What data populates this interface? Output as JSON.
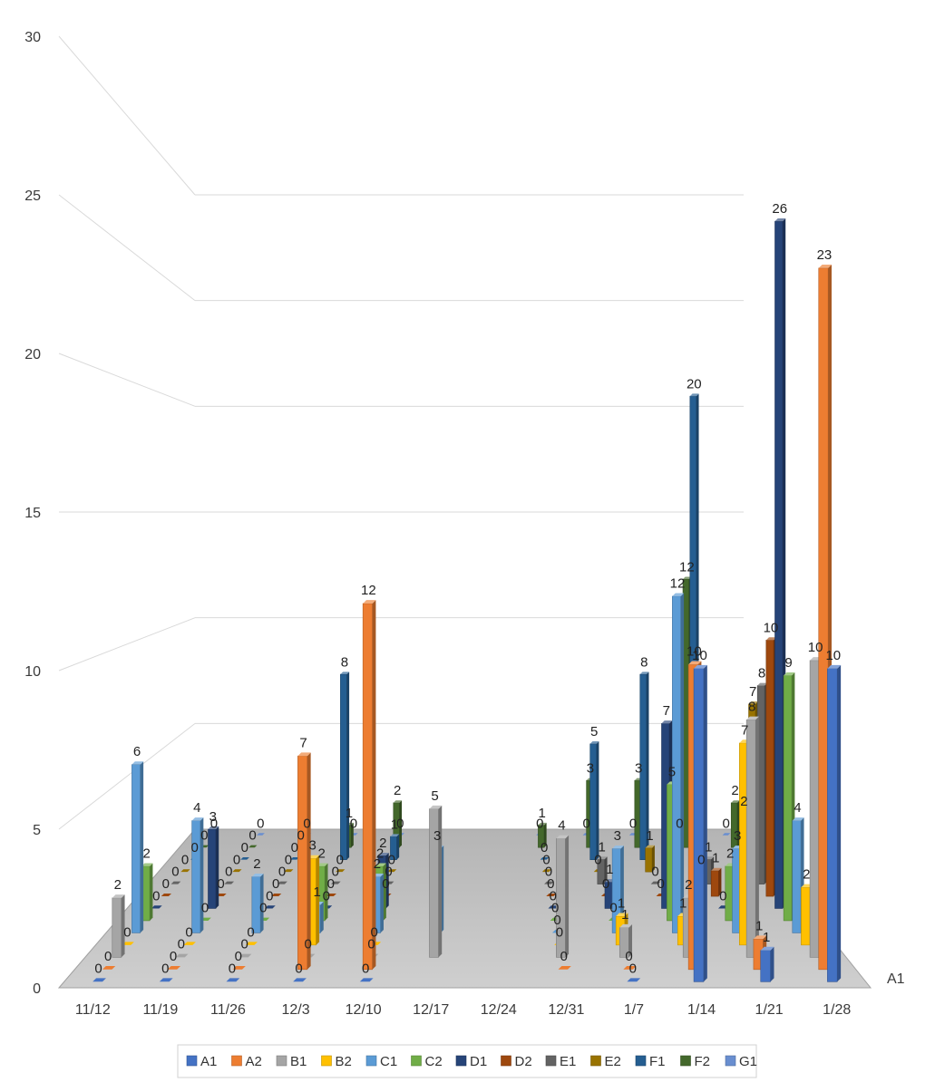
{
  "chart_data": {
    "type": "bar",
    "subtype": "3d-column",
    "title": "",
    "xlabel": "",
    "ylabel": "",
    "ylim": [
      0,
      30
    ],
    "y_ticks": [
      "0",
      "5",
      "10",
      "15",
      "20",
      "25",
      "30"
    ],
    "categories": [
      "11/12",
      "11/19",
      "11/26",
      "12/3",
      "12/10",
      "12/17",
      "12/24",
      "12/31",
      "1/7",
      "1/14",
      "1/21",
      "1/28"
    ],
    "depth_axis_label": "A1",
    "grid": true,
    "legend_position": "bottom",
    "series": [
      {
        "name": "A1",
        "color": "#4472C4",
        "values": [
          0,
          0,
          0,
          0,
          0,
          null,
          null,
          null,
          0,
          10,
          1,
          10
        ]
      },
      {
        "name": "A2",
        "color": "#ED7D31",
        "values": [
          0,
          0,
          0,
          7,
          12,
          null,
          null,
          0,
          0,
          10,
          1,
          23
        ]
      },
      {
        "name": "B1",
        "color": "#A5A5A5",
        "values": [
          2,
          0,
          0,
          0,
          0,
          5,
          null,
          4,
          1,
          2,
          8,
          10
        ]
      },
      {
        "name": "B2",
        "color": "#FFC000",
        "values": [
          0,
          0,
          0,
          3,
          0,
          null,
          null,
          0,
          1,
          1,
          7,
          2
        ]
      },
      {
        "name": "C1",
        "color": "#5B9BD5",
        "values": [
          6,
          4,
          2,
          1,
          2,
          3,
          null,
          0,
          3,
          12,
          3,
          4
        ]
      },
      {
        "name": "C2",
        "color": "#70AD47",
        "values": [
          2,
          0,
          0,
          2,
          2,
          null,
          null,
          0,
          0,
          5,
          2,
          9
        ]
      },
      {
        "name": "D1",
        "color": "#264478",
        "values": [
          0,
          3,
          0,
          0,
          2,
          null,
          null,
          0,
          1,
          7,
          0,
          26
        ]
      },
      {
        "name": "D2",
        "color": "#9E480E",
        "values": [
          0,
          0,
          0,
          0,
          0,
          null,
          null,
          0,
          0,
          0,
          1,
          10
        ]
      },
      {
        "name": "E1",
        "color": "#636363",
        "values": [
          0,
          0,
          0,
          0,
          0,
          null,
          null,
          0,
          1,
          0,
          1,
          8
        ]
      },
      {
        "name": "E2",
        "color": "#997300",
        "values": [
          0,
          0,
          0,
          0,
          0,
          null,
          null,
          0,
          0,
          1,
          0,
          7
        ]
      },
      {
        "name": "F1",
        "color": "#255E91",
        "values": [
          0,
          0,
          0,
          8,
          1,
          null,
          null,
          0,
          5,
          8,
          20,
          2
        ]
      },
      {
        "name": "F2",
        "color": "#43682B",
        "values": [
          0,
          0,
          0,
          1,
          2,
          null,
          null,
          1,
          3,
          3,
          12,
          2
        ]
      },
      {
        "name": "G1",
        "color": "#698ED0",
        "values": [
          0,
          0,
          0,
          0,
          0,
          null,
          null,
          0,
          0,
          0,
          0,
          0
        ]
      }
    ]
  }
}
